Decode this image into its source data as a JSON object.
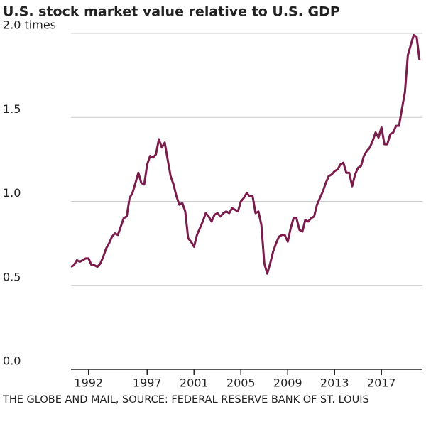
{
  "chart_data": {
    "type": "line",
    "title": "U.S. stock market value relative to U.S. GDP",
    "source": "THE GLOBE AND MAIL, SOURCE: FEDERAL RESERVE BANK OF ST. LOUIS",
    "x": [
      1990.5,
      1990.75,
      1991,
      1991.25,
      1991.5,
      1991.75,
      1992,
      1992.25,
      1992.5,
      1992.75,
      1993,
      1993.25,
      1993.5,
      1993.75,
      1994,
      1994.25,
      1994.5,
      1994.75,
      1995,
      1995.25,
      1995.5,
      1995.75,
      1996,
      1996.25,
      1996.5,
      1996.75,
      1997,
      1997.25,
      1997.5,
      1997.75,
      1998,
      1998.25,
      1998.5,
      1998.75,
      1999,
      1999.25,
      1999.5,
      1999.75,
      2000,
      2000.25,
      2000.5,
      2000.75,
      2001,
      2001.25,
      2001.5,
      2001.75,
      2002,
      2002.25,
      2002.5,
      2002.75,
      2003,
      2003.25,
      2003.5,
      2003.75,
      2004,
      2004.25,
      2004.5,
      2004.75,
      2005,
      2005.25,
      2005.5,
      2005.75,
      2006,
      2006.25,
      2006.5,
      2006.75,
      2007,
      2007.25,
      2007.5,
      2007.75,
      2008,
      2008.25,
      2008.5,
      2008.75,
      2009,
      2009.25,
      2009.5,
      2009.75,
      2010,
      2010.25,
      2010.5,
      2010.75,
      2011,
      2011.25,
      2011.5,
      2011.75,
      2012,
      2012.25,
      2012.5,
      2012.75,
      2013,
      2013.25,
      2013.5,
      2013.75,
      2014,
      2014.25,
      2014.5,
      2014.75,
      2015,
      2015.25,
      2015.5,
      2015.75,
      2016,
      2016.25,
      2016.5,
      2016.75,
      2017,
      2017.25,
      2017.5,
      2017.75,
      2018,
      2018.25,
      2018.5,
      2018.75,
      2019,
      2019.25,
      2019.5,
      2019.75,
      2020,
      2020.25
    ],
    "series": [
      {
        "color": "#7b1d4c",
        "values": [
          0.61,
          0.62,
          0.65,
          0.64,
          0.65,
          0.66,
          0.66,
          0.62,
          0.62,
          0.61,
          0.63,
          0.67,
          0.72,
          0.75,
          0.79,
          0.81,
          0.8,
          0.85,
          0.9,
          0.91,
          1.02,
          1.05,
          1.11,
          1.17,
          1.11,
          1.1,
          1.22,
          1.27,
          1.26,
          1.28,
          1.37,
          1.32,
          1.35,
          1.25,
          1.15,
          1.1,
          1.03,
          0.98,
          0.99,
          0.94,
          0.78,
          0.76,
          0.73,
          0.8,
          0.84,
          0.88,
          0.93,
          0.91,
          0.88,
          0.92,
          0.93,
          0.91,
          0.93,
          0.94,
          0.93,
          0.96,
          0.95,
          0.94,
          1.0,
          1.02,
          1.05,
          1.03,
          1.03,
          0.93,
          0.94,
          0.86,
          0.63,
          0.57,
          0.63,
          0.7,
          0.75,
          0.79,
          0.8,
          0.8,
          0.76,
          0.84,
          0.9,
          0.9,
          0.83,
          0.82,
          0.89,
          0.88,
          0.9,
          0.91,
          0.98,
          1.02,
          1.06,
          1.11,
          1.15,
          1.16,
          1.18,
          1.19,
          1.22,
          1.23,
          1.17,
          1.17,
          1.09,
          1.16,
          1.2,
          1.21,
          1.27,
          1.3,
          1.32,
          1.36,
          1.41,
          1.38,
          1.44,
          1.34,
          1.34,
          1.4,
          1.41,
          1.45,
          1.45,
          1.55,
          1.65,
          1.87,
          1.93,
          1.99,
          1.98,
          1.84
        ]
      }
    ],
    "xlim": [
      1990.5,
      2020.5
    ],
    "xticks": [
      1992,
      1997,
      2001,
      2005,
      2009,
      2013,
      2017
    ],
    "ylim": [
      0,
      2
    ],
    "yticks": [
      {
        "value": 0,
        "label": "0.0"
      },
      0.5,
      {
        "value": 1,
        "label": "1.0"
      },
      1.5,
      {
        "value": 2,
        "label": "2.0 times"
      }
    ],
    "grid": true
  }
}
